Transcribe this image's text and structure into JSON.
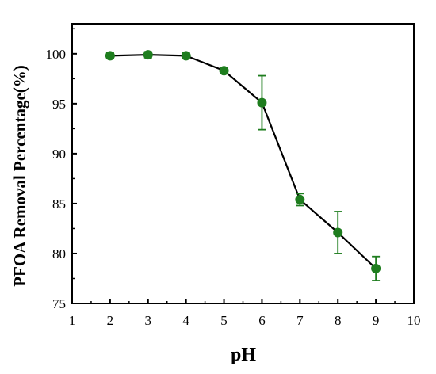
{
  "chart_data": {
    "type": "line",
    "xlabel": "pH",
    "ylabel": "PFOA Removal Percentage(%)",
    "xlim": [
      1,
      10
    ],
    "ylim": [
      75,
      103
    ],
    "xticks": [
      1,
      2,
      3,
      4,
      5,
      6,
      7,
      8,
      9,
      10
    ],
    "yticks": [
      75,
      80,
      85,
      90,
      95,
      100
    ],
    "grid": false,
    "series": [
      {
        "x": [
          2,
          3,
          4,
          5,
          6,
          7,
          8,
          9
        ],
        "y": [
          99.8,
          99.9,
          99.8,
          98.3,
          95.1,
          85.4,
          82.1,
          78.5
        ],
        "error": [
          0.3,
          0.3,
          0.3,
          0.3,
          2.7,
          0.6,
          2.1,
          1.2
        ],
        "color": "#1e7d1e",
        "line_color": "#000000"
      }
    ]
  }
}
